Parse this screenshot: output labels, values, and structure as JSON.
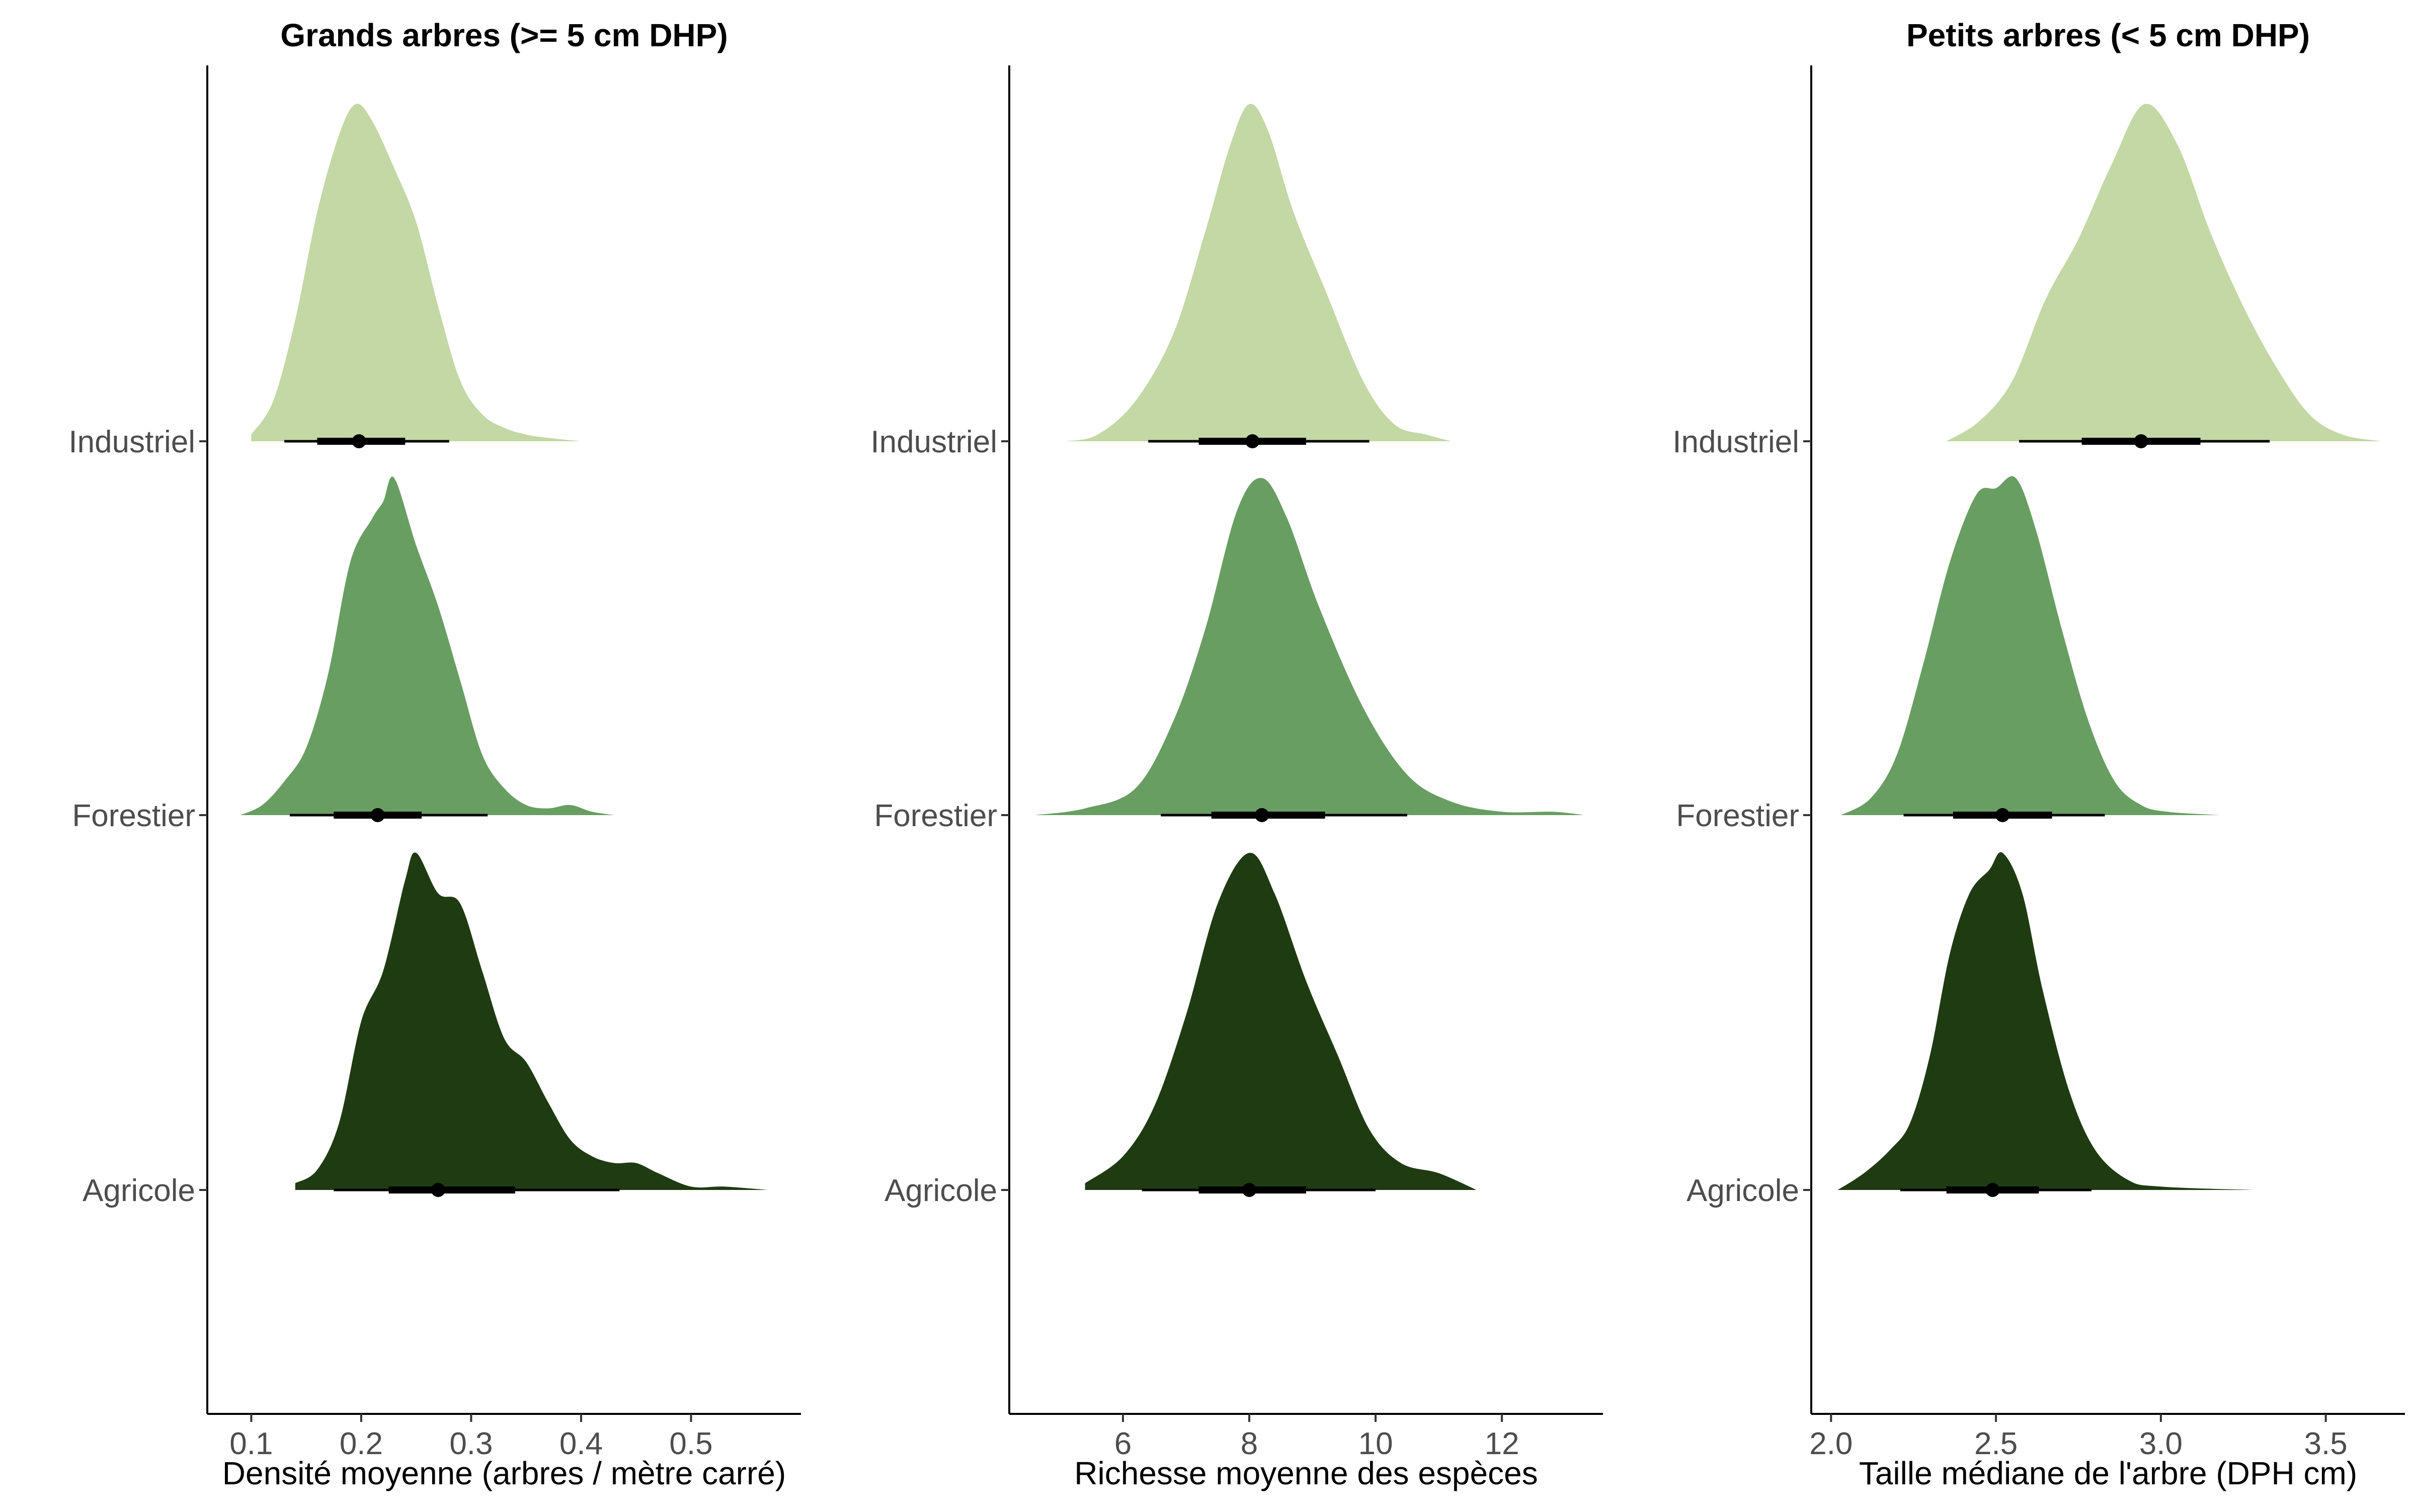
{
  "chart_data": [
    {
      "type": "density-ridgeline",
      "title": "Grands arbres (>= 5 cm DHP)",
      "xlabel": "Densité moyenne (arbres / mètre carré)",
      "ylabel": "",
      "xlim": [
        0.06,
        0.6
      ],
      "xticks": [
        {
          "value": 0.1,
          "label": "0.1"
        },
        {
          "value": 0.2,
          "label": "0.2"
        },
        {
          "value": 0.3,
          "label": "0.3"
        },
        {
          "value": 0.4,
          "label": "0.4"
        },
        {
          "value": 0.5,
          "label": "0.5"
        }
      ],
      "categories": [
        "Industriel",
        "Forestier",
        "Agricole"
      ],
      "series": [
        {
          "category": "Industriel",
          "color": "#c3d8a5",
          "density_x": [
            0.1,
            0.12,
            0.14,
            0.16,
            0.18,
            0.195,
            0.21,
            0.23,
            0.25,
            0.27,
            0.29,
            0.31,
            0.33,
            0.35,
            0.37,
            0.4
          ],
          "density_y": [
            0.02,
            0.12,
            0.36,
            0.68,
            0.91,
            1.0,
            0.95,
            0.81,
            0.65,
            0.4,
            0.18,
            0.08,
            0.04,
            0.02,
            0.01,
            0.0
          ],
          "median": 0.198,
          "interval66": [
            0.16,
            0.24
          ],
          "interval95": [
            0.13,
            0.28
          ]
        },
        {
          "category": "Forestier",
          "color": "#689e62",
          "density_x": [
            0.09,
            0.11,
            0.13,
            0.15,
            0.17,
            0.19,
            0.21,
            0.22,
            0.23,
            0.25,
            0.27,
            0.29,
            0.31,
            0.33,
            0.35,
            0.37,
            0.39,
            0.41,
            0.43
          ],
          "density_y": [
            0.0,
            0.03,
            0.1,
            0.2,
            0.42,
            0.75,
            0.88,
            0.93,
            1.0,
            0.8,
            0.62,
            0.4,
            0.18,
            0.08,
            0.03,
            0.02,
            0.03,
            0.01,
            0.0
          ],
          "median": 0.215,
          "interval66": [
            0.175,
            0.255
          ],
          "interval95": [
            0.135,
            0.315
          ]
        },
        {
          "category": "Agricole",
          "color": "#1f3b12",
          "density_x": [
            0.14,
            0.16,
            0.18,
            0.2,
            0.22,
            0.24,
            0.25,
            0.27,
            0.29,
            0.31,
            0.33,
            0.35,
            0.37,
            0.39,
            0.41,
            0.43,
            0.45,
            0.47,
            0.5,
            0.53,
            0.57
          ],
          "density_y": [
            0.02,
            0.06,
            0.2,
            0.5,
            0.65,
            0.92,
            1.0,
            0.88,
            0.85,
            0.65,
            0.45,
            0.38,
            0.26,
            0.15,
            0.1,
            0.08,
            0.08,
            0.05,
            0.01,
            0.01,
            0.0
          ],
          "median": 0.27,
          "interval66": [
            0.225,
            0.34
          ],
          "interval95": [
            0.175,
            0.435
          ]
        }
      ]
    },
    {
      "type": "density-ridgeline",
      "title": "",
      "xlabel": "Richesse moyenne des espèces",
      "ylabel": "",
      "xlim": [
        4.2,
        13.6
      ],
      "xticks": [
        {
          "value": 6,
          "label": "6"
        },
        {
          "value": 8,
          "label": "8"
        },
        {
          "value": 10,
          "label": "10"
        },
        {
          "value": 12,
          "label": "12"
        }
      ],
      "categories": [
        "Industriel",
        "Forestier",
        "Agricole"
      ],
      "series": [
        {
          "category": "Industriel",
          "color": "#c3d8a5",
          "density_x": [
            5.1,
            5.6,
            6.2,
            6.8,
            7.3,
            7.7,
            8.0,
            8.3,
            8.7,
            9.2,
            9.8,
            10.3,
            10.8,
            11.2
          ],
          "density_y": [
            0.0,
            0.02,
            0.12,
            0.32,
            0.62,
            0.88,
            1.0,
            0.92,
            0.68,
            0.45,
            0.18,
            0.05,
            0.02,
            0.0
          ],
          "median": 8.05,
          "interval66": [
            7.2,
            8.9
          ],
          "interval95": [
            6.4,
            9.9
          ]
        },
        {
          "category": "Forestier",
          "color": "#689e62",
          "density_x": [
            4.6,
            5.4,
            6.2,
            6.8,
            7.3,
            7.8,
            8.2,
            8.6,
            9.1,
            9.8,
            10.5,
            11.2,
            12.0,
            12.8,
            13.3
          ],
          "density_y": [
            0.0,
            0.02,
            0.08,
            0.28,
            0.55,
            0.9,
            1.0,
            0.88,
            0.62,
            0.32,
            0.12,
            0.04,
            0.01,
            0.01,
            0.0
          ],
          "median": 8.2,
          "interval66": [
            7.4,
            9.2
          ],
          "interval95": [
            6.6,
            10.5
          ]
        },
        {
          "category": "Agricole",
          "color": "#1f3b12",
          "density_x": [
            5.4,
            6.0,
            6.5,
            7.0,
            7.5,
            8.0,
            8.4,
            8.9,
            9.4,
            9.9,
            10.4,
            11.0,
            11.6
          ],
          "density_y": [
            0.02,
            0.1,
            0.25,
            0.52,
            0.85,
            1.0,
            0.88,
            0.62,
            0.4,
            0.18,
            0.08,
            0.05,
            0.0
          ],
          "median": 8.0,
          "interval66": [
            7.2,
            8.9
          ],
          "interval95": [
            6.3,
            10.0
          ]
        }
      ]
    },
    {
      "type": "density-ridgeline",
      "title": "Petits arbres (< 5 cm DHP)",
      "xlabel": "Taille médiane de l'arbre (DPH cm)",
      "ylabel": "",
      "xlim": [
        1.94,
        3.74
      ],
      "xticks": [
        {
          "value": 2.0,
          "label": "2.0"
        },
        {
          "value": 2.5,
          "label": "2.5"
        },
        {
          "value": 3.0,
          "label": "3.0"
        },
        {
          "value": 3.5,
          "label": "3.5"
        }
      ],
      "categories": [
        "Industriel",
        "Forestier",
        "Agricole"
      ],
      "series": [
        {
          "category": "Industriel",
          "color": "#c3d8a5",
          "density_x": [
            2.35,
            2.45,
            2.55,
            2.65,
            2.75,
            2.85,
            2.95,
            3.05,
            3.15,
            3.25,
            3.35,
            3.45,
            3.55,
            3.67
          ],
          "density_y": [
            0.0,
            0.06,
            0.18,
            0.42,
            0.6,
            0.82,
            1.0,
            0.88,
            0.62,
            0.4,
            0.22,
            0.08,
            0.02,
            0.0
          ],
          "median": 2.94,
          "interval66": [
            2.76,
            3.12
          ],
          "interval95": [
            2.57,
            3.33
          ]
        },
        {
          "category": "Forestier",
          "color": "#689e62",
          "density_x": [
            2.03,
            2.12,
            2.2,
            2.28,
            2.36,
            2.44,
            2.5,
            2.56,
            2.62,
            2.7,
            2.78,
            2.86,
            2.94,
            3.02,
            3.18
          ],
          "density_y": [
            0.0,
            0.05,
            0.18,
            0.45,
            0.75,
            0.95,
            0.97,
            1.0,
            0.85,
            0.55,
            0.28,
            0.1,
            0.03,
            0.01,
            0.0
          ],
          "median": 2.52,
          "interval66": [
            2.37,
            2.67
          ],
          "interval95": [
            2.22,
            2.83
          ]
        },
        {
          "category": "Agricole",
          "color": "#1f3b12",
          "density_x": [
            2.02,
            2.1,
            2.18,
            2.24,
            2.3,
            2.36,
            2.42,
            2.48,
            2.52,
            2.58,
            2.64,
            2.72,
            2.8,
            2.9,
            3.0,
            3.28
          ],
          "density_y": [
            0.0,
            0.05,
            0.12,
            0.2,
            0.4,
            0.7,
            0.88,
            0.95,
            1.0,
            0.88,
            0.6,
            0.3,
            0.12,
            0.03,
            0.01,
            0.0
          ],
          "median": 2.49,
          "interval66": [
            2.35,
            2.63
          ],
          "interval95": [
            2.21,
            2.79
          ]
        }
      ]
    }
  ]
}
